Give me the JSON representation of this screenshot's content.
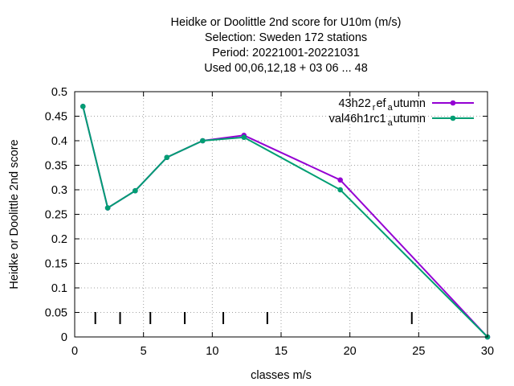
{
  "chart_data": {
    "type": "line",
    "title_lines": [
      "Heidke or Doolittle 2nd score  for U10m (m/s)",
      "Selection: Sweden    172 stations",
      "Period: 20221001-20221031",
      "Used  00,06,12,18  + 03 06 ... 48"
    ],
    "xlabel": "classes m/s",
    "ylabel": "Heidke or Doolittle 2nd score",
    "xlim": [
      0,
      30
    ],
    "ylim": [
      0,
      0.5
    ],
    "xticks": [
      0,
      5,
      10,
      15,
      20,
      25,
      30
    ],
    "xtick_labels": [
      "0",
      "5",
      "10",
      "15",
      "20",
      "25",
      "30"
    ],
    "yticks": [
      0,
      0.05,
      0.1,
      0.15,
      0.2,
      0.25,
      0.3,
      0.35,
      0.4,
      0.45,
      0.5
    ],
    "ytick_labels": [
      "0",
      "0.05",
      "0.1",
      "0.15",
      "0.2",
      "0.25",
      "0.3",
      "0.35",
      "0.4",
      "0.45",
      "0.5"
    ],
    "grid": true,
    "legend_position": "top-right",
    "class_markers_x": [
      1.5,
      3.3,
      5.5,
      8.0,
      10.8,
      14.0,
      24.5
    ],
    "series": [
      {
        "legend_main": "43h22",
        "legend_sub1": "r",
        "legend_mid": "ef",
        "legend_sub2": "a",
        "legend_end": "utumn",
        "color": "#9400d3",
        "x": [
          0.6,
          2.4,
          4.4,
          6.7,
          9.3,
          12.3,
          19.3,
          30.0
        ],
        "y": [
          0.47,
          0.263,
          0.298,
          0.366,
          0.4,
          0.411,
          0.32,
          0.0
        ]
      },
      {
        "legend_main": "val46h1rc1",
        "legend_sub1": "",
        "legend_mid": "",
        "legend_sub2": "a",
        "legend_end": "utumn",
        "color": "#009e73",
        "x": [
          0.6,
          2.4,
          4.4,
          6.7,
          9.3,
          12.3,
          19.3,
          30.0
        ],
        "y": [
          0.47,
          0.263,
          0.298,
          0.366,
          0.4,
          0.407,
          0.3,
          0.0
        ]
      }
    ]
  }
}
